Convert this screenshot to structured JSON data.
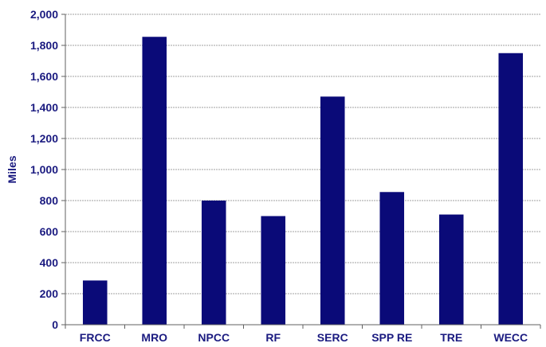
{
  "chart_data": {
    "type": "bar",
    "title": "",
    "xlabel": "",
    "ylabel": "Miles",
    "categories": [
      "FRCC",
      "MRO",
      "NPCC",
      "RF",
      "SERC",
      "SPP RE",
      "TRE",
      "WECC"
    ],
    "values": [
      285,
      1855,
      800,
      700,
      1470,
      855,
      710,
      1750
    ],
    "ylim": [
      0,
      2000
    ],
    "yticks": [
      0,
      200,
      400,
      600,
      800,
      1000,
      1200,
      1400,
      1600,
      1800,
      2000
    ],
    "ytick_labels": [
      "0",
      "200",
      "400",
      "600",
      "800",
      "1,000",
      "1,200",
      "1,400",
      "1,600",
      "1,800",
      "2,000"
    ],
    "grid": true,
    "legend": "none"
  },
  "colors": {
    "bar": "#0a0a78",
    "text": "#1a1a80",
    "grid": "#a0a0a0",
    "axis": "#606060"
  }
}
